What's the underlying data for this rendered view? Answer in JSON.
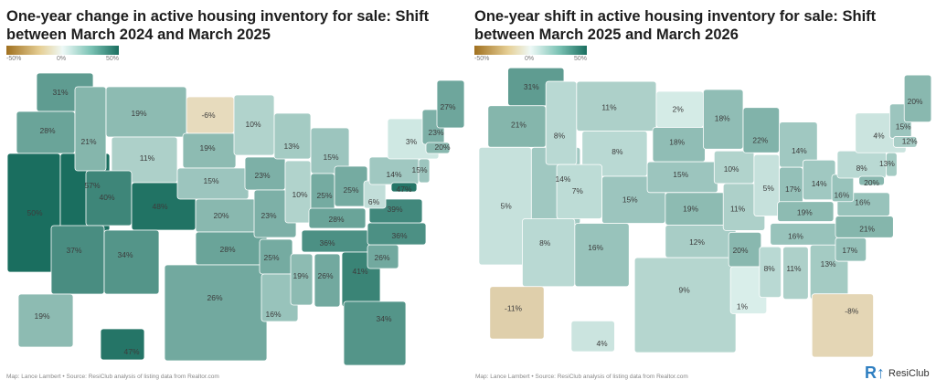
{
  "maps": [
    {
      "title": "One-year change in active housing inventory for sale: Shift between March 2024 and March 2025",
      "legend": {
        "min": "-50%",
        "mid": "0%",
        "max": "50%"
      },
      "footer": "Map: Lance Lambert • Source: ResiClub analysis of listing data from Realtor.com",
      "values": {
        "WA": 31,
        "OR": 28,
        "CA": 50,
        "NV": 57,
        "ID": 21,
        "MT": 19,
        "WY": 11,
        "UT": 40,
        "CO": 48,
        "AZ": 37,
        "NM": 34,
        "ND": -6,
        "SD": 19,
        "NE": 15,
        "KS": 20,
        "OK": 28,
        "TX": 26,
        "MN": 10,
        "IA": 23,
        "MO": 23,
        "AR": 25,
        "LA": 16,
        "WI": 13,
        "IL": 10,
        "MI": 15,
        "IN": 25,
        "OH": 25,
        "KY": 28,
        "TN": 36,
        "MS": 19,
        "AL": 26,
        "GA": 41,
        "FL": 34,
        "SC": 26,
        "NC": 36,
        "VA": 39,
        "WV": 6,
        "PA": 14,
        "NY": 3,
        "NJ": 15,
        "MD": 47,
        "NH": 23,
        "MA": 20,
        "ME": 27,
        "AK": 19,
        "HI": 47
      }
    },
    {
      "title": "One-year shift in active housing inventory for sale: Shift between March 2025 and March 2026",
      "legend": {
        "min": "-50%",
        "mid": "0%",
        "max": "50%"
      },
      "footer": "Map: Lance Lambert • Source: ResiClub analysis of listing data from Realtor.com",
      "values": {
        "WA": 31,
        "OR": 21,
        "CA": 5,
        "NV": 14,
        "ID": 8,
        "MT": 11,
        "WY": 8,
        "UT": 7,
        "CO": 15,
        "AZ": 8,
        "NM": 16,
        "ND": 2,
        "SD": 18,
        "NE": 15,
        "KS": 19,
        "OK": 12,
        "TX": 9,
        "MN": 18,
        "IA": 10,
        "MO": 11,
        "AR": 20,
        "LA": 1,
        "WI": 22,
        "IL": 5,
        "MI": 14,
        "IN": 17,
        "OH": 14,
        "KY": 19,
        "TN": 16,
        "MS": 8,
        "AL": 11,
        "GA": 13,
        "FL": -8,
        "SC": 17,
        "NC": 21,
        "VA": 16,
        "WV": 16,
        "PA": 8,
        "NY": 4,
        "NJ": 13,
        "MD": 20,
        "NH": 15,
        "MA": 12,
        "ME": 20,
        "AK": -11,
        "HI": 4
      }
    }
  ],
  "brand": "ResiClub",
  "colors": {
    "neg": "#a0701f",
    "zero": "#eef9f7",
    "pos": "#1a6e5f",
    "neg_light": "#f1ead2",
    "pos_light": "#dff2ee"
  }
}
